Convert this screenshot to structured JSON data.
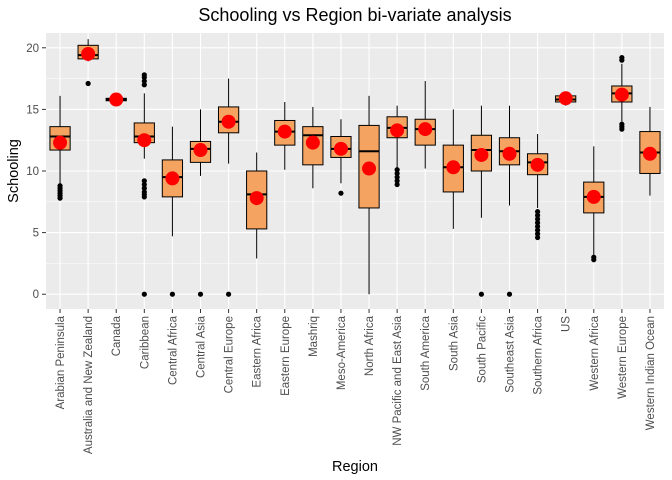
{
  "chart_data": {
    "type": "box",
    "title": "Schooling vs Region bi-variate analysis",
    "xlabel": "Region",
    "ylabel": "Schooling",
    "ylim": [
      -1.2,
      21.2
    ],
    "yticks": [
      0,
      5,
      10,
      15,
      20
    ],
    "grid": true,
    "legend": "none",
    "colors": {
      "panel": "#ebebeb",
      "grid": "#ffffff",
      "box_fill": "#f4a460",
      "mean_marker": "#ff0000",
      "outline": "#000000"
    },
    "series": [
      {
        "category": "Arabian Peninsula",
        "lower": 8.9,
        "q1": 11.7,
        "median": 12.8,
        "q3": 13.6,
        "upper": 16.1,
        "mean": 12.3,
        "outliers": [
          7.8,
          8.0,
          8.2,
          8.4,
          8.6,
          8.8
        ]
      },
      {
        "category": "Australia and New Zealand",
        "lower": 18.9,
        "q1": 19.1,
        "median": 19.4,
        "q3": 20.2,
        "upper": 20.7,
        "mean": 19.5,
        "outliers": [
          17.1
        ]
      },
      {
        "category": "Canada",
        "lower": 15.6,
        "q1": 15.7,
        "median": 15.8,
        "q3": 15.9,
        "upper": 16.0,
        "mean": 15.8,
        "outliers": []
      },
      {
        "category": "Caribbean",
        "lower": 11.0,
        "q1": 12.3,
        "median": 12.8,
        "q3": 13.9,
        "upper": 16.3,
        "mean": 12.5,
        "outliers": [
          0.0,
          7.9,
          8.1,
          8.3,
          8.6,
          8.9,
          9.2,
          17.0,
          17.3,
          17.6,
          17.8
        ]
      },
      {
        "category": "Central Africa",
        "lower": 4.7,
        "q1": 7.9,
        "median": 9.5,
        "q3": 10.9,
        "upper": 13.6,
        "mean": 9.4,
        "outliers": [
          0.0
        ]
      },
      {
        "category": "Central Asia",
        "lower": 9.6,
        "q1": 10.7,
        "median": 11.8,
        "q3": 12.4,
        "upper": 15.0,
        "mean": 11.7,
        "outliers": [
          0.0
        ]
      },
      {
        "category": "Central Europe",
        "lower": 10.6,
        "q1": 13.1,
        "median": 14.0,
        "q3": 15.2,
        "upper": 17.5,
        "mean": 14.0,
        "outliers": [
          0.0
        ]
      },
      {
        "category": "Eastern Africa",
        "lower": 2.9,
        "q1": 5.3,
        "median": 8.1,
        "q3": 10.0,
        "upper": 11.5,
        "mean": 7.8,
        "outliers": []
      },
      {
        "category": "Eastern Europe",
        "lower": 10.1,
        "q1": 12.1,
        "median": 13.2,
        "q3": 14.1,
        "upper": 15.6,
        "mean": 13.2,
        "outliers": []
      },
      {
        "category": "Mashriq",
        "lower": 8.6,
        "q1": 10.5,
        "median": 12.9,
        "q3": 13.6,
        "upper": 15.2,
        "mean": 12.3,
        "outliers": []
      },
      {
        "category": "Meso-America",
        "lower": 9.0,
        "q1": 11.1,
        "median": 11.8,
        "q3": 12.8,
        "upper": 14.2,
        "mean": 11.8,
        "outliers": [
          8.2
        ]
      },
      {
        "category": "North Africa",
        "lower": 0.0,
        "q1": 7.0,
        "median": 11.6,
        "q3": 13.7,
        "upper": 16.1,
        "mean": 10.2,
        "outliers": []
      },
      {
        "category": "NW Pacific and East Asia",
        "lower": 10.0,
        "q1": 12.7,
        "median": 13.5,
        "q3": 14.4,
        "upper": 15.3,
        "mean": 13.3,
        "outliers": [
          8.9,
          9.2,
          9.5,
          9.8,
          10.1
        ]
      },
      {
        "category": "South America",
        "lower": 10.2,
        "q1": 12.1,
        "median": 13.4,
        "q3": 14.2,
        "upper": 17.3,
        "mean": 13.4,
        "outliers": []
      },
      {
        "category": "South Asia",
        "lower": 5.3,
        "q1": 8.3,
        "median": 10.3,
        "q3": 12.1,
        "upper": 15.0,
        "mean": 10.3,
        "outliers": []
      },
      {
        "category": "South Pacific",
        "lower": 6.2,
        "q1": 10.0,
        "median": 11.7,
        "q3": 12.9,
        "upper": 15.3,
        "mean": 11.3,
        "outliers": [
          0.0
        ]
      },
      {
        "category": "Southeast Asia",
        "lower": 7.2,
        "q1": 10.5,
        "median": 11.6,
        "q3": 12.7,
        "upper": 15.3,
        "mean": 11.4,
        "outliers": [
          0.0
        ]
      },
      {
        "category": "Southern Africa",
        "lower": 7.0,
        "q1": 9.7,
        "median": 10.7,
        "q3": 11.4,
        "upper": 13.0,
        "mean": 10.5,
        "outliers": [
          4.6,
          4.9,
          5.2,
          5.5,
          5.8,
          6.1,
          6.4,
          6.7
        ]
      },
      {
        "category": "US",
        "lower": 15.3,
        "q1": 15.6,
        "median": 15.8,
        "q3": 16.1,
        "upper": 16.3,
        "mean": 15.9,
        "outliers": []
      },
      {
        "category": "Western Africa",
        "lower": 3.2,
        "q1": 6.6,
        "median": 7.9,
        "q3": 9.1,
        "upper": 12.0,
        "mean": 7.9,
        "outliers": [
          2.8,
          3.0
        ]
      },
      {
        "category": "Western Europe",
        "lower": 14.0,
        "q1": 15.6,
        "median": 16.3,
        "q3": 16.9,
        "upper": 18.7,
        "mean": 16.2,
        "outliers": [
          13.4,
          13.6,
          13.8,
          19.0,
          19.2
        ]
      },
      {
        "category": "Western Indian Ocean",
        "lower": 8.0,
        "q1": 9.8,
        "median": 11.5,
        "q3": 13.2,
        "upper": 15.2,
        "mean": 11.4,
        "outliers": []
      }
    ]
  }
}
